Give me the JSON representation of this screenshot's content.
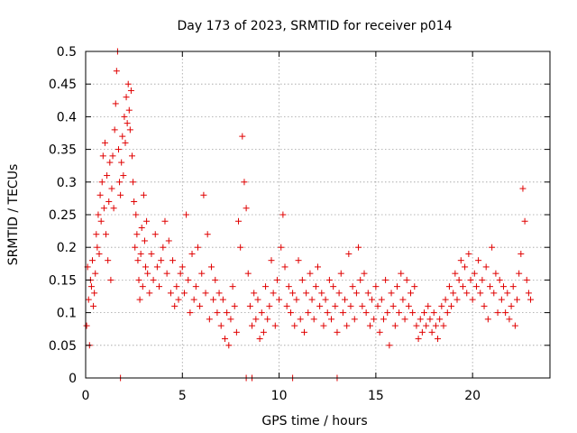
{
  "chart_data": {
    "type": "scatter",
    "title": "Day 173 of 2023, SRMTID for receiver p014",
    "xlabel": "GPS time / hours",
    "ylabel": "SRMTID / TECUs",
    "xlim": [
      0,
      24
    ],
    "ylim": [
      0,
      0.5
    ],
    "xticks": [
      0,
      5,
      10,
      15,
      20
    ],
    "xtick_labels": [
      "0",
      "5",
      "10",
      "15",
      "20"
    ],
    "yticks": [
      0,
      0.05,
      0.1,
      0.15,
      0.2,
      0.25,
      0.3,
      0.35,
      0.4,
      0.45,
      0.5
    ],
    "ytick_labels": [
      "0",
      "0.05",
      "0.1",
      "0.15",
      "0.2",
      "0.25",
      "0.3",
      "0.35",
      "0.4",
      "0.45",
      "0.5"
    ],
    "grid": true,
    "marker": "+",
    "marker_color": "#e00000",
    "series": [
      {
        "name": "SRMTID",
        "points": [
          [
            0.05,
            0.08
          ],
          [
            0.1,
            0.17
          ],
          [
            0.15,
            0.12
          ],
          [
            0.2,
            0.05
          ],
          [
            0.25,
            0.15
          ],
          [
            0.3,
            0.14
          ],
          [
            0.35,
            0.18
          ],
          [
            0.4,
            0.11
          ],
          [
            0.45,
            0.13
          ],
          [
            0.5,
            0.16
          ],
          [
            0.55,
            0.22
          ],
          [
            0.6,
            0.2
          ],
          [
            0.65,
            0.25
          ],
          [
            0.7,
            0.19
          ],
          [
            0.75,
            0.28
          ],
          [
            0.8,
            0.24
          ],
          [
            0.85,
            0.3
          ],
          [
            0.9,
            0.34
          ],
          [
            0.95,
            0.26
          ],
          [
            1.0,
            0.36
          ],
          [
            1.05,
            0.22
          ],
          [
            1.1,
            0.31
          ],
          [
            1.15,
            0.18
          ],
          [
            1.2,
            0.27
          ],
          [
            1.25,
            0.33
          ],
          [
            1.3,
            0.15
          ],
          [
            1.35,
            0.29
          ],
          [
            1.4,
            0.34
          ],
          [
            1.45,
            0.26
          ],
          [
            1.5,
            0.38
          ],
          [
            1.55,
            0.42
          ],
          [
            1.6,
            0.47
          ],
          [
            1.65,
            0.5
          ],
          [
            1.7,
            0.35
          ],
          [
            1.75,
            0.3
          ],
          [
            1.8,
            0.28
          ],
          [
            1.85,
            0.33
          ],
          [
            1.9,
            0.37
          ],
          [
            1.95,
            0.31
          ],
          [
            2.0,
            0.4
          ],
          [
            2.05,
            0.36
          ],
          [
            2.1,
            0.43
          ],
          [
            2.15,
            0.39
          ],
          [
            2.2,
            0.45
          ],
          [
            2.25,
            0.41
          ],
          [
            2.3,
            0.38
          ],
          [
            2.35,
            0.44
          ],
          [
            2.4,
            0.34
          ],
          [
            2.45,
            0.3
          ],
          [
            2.5,
            0.27
          ],
          [
            2.55,
            0.2
          ],
          [
            2.6,
            0.25
          ],
          [
            2.65,
            0.22
          ],
          [
            2.7,
            0.18
          ],
          [
            2.75,
            0.15
          ],
          [
            2.8,
            0.12
          ],
          [
            2.85,
            0.19
          ],
          [
            2.9,
            0.23
          ],
          [
            2.95,
            0.14
          ],
          [
            3.0,
            0.28
          ],
          [
            3.05,
            0.21
          ],
          [
            3.1,
            0.17
          ],
          [
            3.15,
            0.24
          ],
          [
            3.2,
            0.16
          ],
          [
            3.3,
            0.13
          ],
          [
            3.4,
            0.19
          ],
          [
            3.5,
            0.15
          ],
          [
            3.6,
            0.22
          ],
          [
            3.7,
            0.17
          ],
          [
            3.8,
            0.14
          ],
          [
            3.9,
            0.18
          ],
          [
            4.0,
            0.2
          ],
          [
            4.1,
            0.24
          ],
          [
            4.2,
            0.16
          ],
          [
            4.3,
            0.21
          ],
          [
            4.4,
            0.13
          ],
          [
            4.5,
            0.18
          ],
          [
            4.6,
            0.11
          ],
          [
            4.7,
            0.14
          ],
          [
            4.8,
            0.12
          ],
          [
            4.9,
            0.16
          ],
          [
            5.0,
            0.17
          ],
          [
            5.1,
            0.13
          ],
          [
            5.2,
            0.25
          ],
          [
            5.3,
            0.15
          ],
          [
            5.4,
            0.1
          ],
          [
            5.5,
            0.19
          ],
          [
            5.6,
            0.12
          ],
          [
            5.7,
            0.14
          ],
          [
            5.8,
            0.2
          ],
          [
            5.9,
            0.11
          ],
          [
            6.0,
            0.16
          ],
          [
            6.1,
            0.28
          ],
          [
            6.2,
            0.13
          ],
          [
            6.3,
            0.22
          ],
          [
            6.4,
            0.09
          ],
          [
            6.5,
            0.17
          ],
          [
            6.6,
            0.12
          ],
          [
            6.7,
            0.15
          ],
          [
            6.8,
            0.1
          ],
          [
            6.9,
            0.13
          ],
          [
            7.0,
            0.08
          ],
          [
            7.1,
            0.12
          ],
          [
            7.2,
            0.06
          ],
          [
            7.3,
            0.1
          ],
          [
            7.4,
            0.05
          ],
          [
            7.5,
            0.09
          ],
          [
            7.6,
            0.14
          ],
          [
            7.7,
            0.11
          ],
          [
            7.8,
            0.07
          ],
          [
            7.9,
            0.24
          ],
          [
            8.0,
            0.2
          ],
          [
            8.1,
            0.37
          ],
          [
            8.2,
            0.3
          ],
          [
            8.3,
            0.26
          ],
          [
            8.4,
            0.16
          ],
          [
            8.5,
            0.11
          ],
          [
            8.6,
            0.08
          ],
          [
            8.7,
            0.13
          ],
          [
            8.8,
            0.09
          ],
          [
            8.9,
            0.12
          ],
          [
            9.0,
            0.06
          ],
          [
            9.1,
            0.1
          ],
          [
            9.2,
            0.07
          ],
          [
            9.3,
            0.14
          ],
          [
            9.4,
            0.09
          ],
          [
            9.5,
            0.11
          ],
          [
            9.6,
            0.18
          ],
          [
            9.7,
            0.13
          ],
          [
            9.8,
            0.08
          ],
          [
            9.9,
            0.15
          ],
          [
            10.0,
            0.12
          ],
          [
            10.1,
            0.2
          ],
          [
            10.2,
            0.25
          ],
          [
            10.3,
            0.17
          ],
          [
            10.4,
            0.11
          ],
          [
            10.5,
            0.14
          ],
          [
            10.6,
            0.1
          ],
          [
            10.7,
            0.13
          ],
          [
            10.8,
            0.08
          ],
          [
            10.9,
            0.12
          ],
          [
            11.0,
            0.18
          ],
          [
            11.1,
            0.09
          ],
          [
            11.2,
            0.15
          ],
          [
            11.3,
            0.07
          ],
          [
            11.4,
            0.13
          ],
          [
            11.5,
            0.1
          ],
          [
            11.6,
            0.16
          ],
          [
            11.7,
            0.12
          ],
          [
            11.8,
            0.09
          ],
          [
            11.9,
            0.14
          ],
          [
            12.0,
            0.17
          ],
          [
            12.1,
            0.11
          ],
          [
            12.2,
            0.13
          ],
          [
            12.3,
            0.08
          ],
          [
            12.4,
            0.12
          ],
          [
            12.5,
            0.1
          ],
          [
            12.6,
            0.15
          ],
          [
            12.7,
            0.09
          ],
          [
            12.8,
            0.14
          ],
          [
            12.9,
            0.11
          ],
          [
            13.0,
            0.07
          ],
          [
            13.1,
            0.13
          ],
          [
            13.2,
            0.16
          ],
          [
            13.3,
            0.1
          ],
          [
            13.4,
            0.12
          ],
          [
            13.5,
            0.08
          ],
          [
            13.6,
            0.19
          ],
          [
            13.7,
            0.11
          ],
          [
            13.8,
            0.14
          ],
          [
            13.9,
            0.09
          ],
          [
            14.0,
            0.13
          ],
          [
            14.1,
            0.2
          ],
          [
            14.2,
            0.15
          ],
          [
            14.3,
            0.11
          ],
          [
            14.4,
            0.16
          ],
          [
            14.5,
            0.1
          ],
          [
            14.6,
            0.13
          ],
          [
            14.7,
            0.08
          ],
          [
            14.8,
            0.12
          ],
          [
            14.9,
            0.09
          ],
          [
            15.0,
            0.14
          ],
          [
            15.1,
            0.11
          ],
          [
            15.2,
            0.07
          ],
          [
            15.3,
            0.12
          ],
          [
            15.4,
            0.09
          ],
          [
            15.5,
            0.15
          ],
          [
            15.6,
            0.1
          ],
          [
            15.7,
            0.05
          ],
          [
            15.8,
            0.13
          ],
          [
            15.9,
            0.11
          ],
          [
            16.0,
            0.08
          ],
          [
            16.1,
            0.14
          ],
          [
            16.2,
            0.1
          ],
          [
            16.3,
            0.16
          ],
          [
            16.4,
            0.12
          ],
          [
            16.5,
            0.09
          ],
          [
            16.6,
            0.15
          ],
          [
            16.7,
            0.11
          ],
          [
            16.8,
            0.13
          ],
          [
            16.9,
            0.1
          ],
          [
            17.0,
            0.14
          ],
          [
            17.1,
            0.08
          ],
          [
            17.2,
            0.06
          ],
          [
            17.3,
            0.09
          ],
          [
            17.4,
            0.07
          ],
          [
            17.5,
            0.1
          ],
          [
            17.6,
            0.08
          ],
          [
            17.7,
            0.11
          ],
          [
            17.8,
            0.09
          ],
          [
            17.9,
            0.07
          ],
          [
            18.0,
            0.1
          ],
          [
            18.1,
            0.08
          ],
          [
            18.2,
            0.06
          ],
          [
            18.3,
            0.09
          ],
          [
            18.4,
            0.11
          ],
          [
            18.5,
            0.08
          ],
          [
            18.6,
            0.12
          ],
          [
            18.7,
            0.1
          ],
          [
            18.8,
            0.14
          ],
          [
            18.9,
            0.11
          ],
          [
            19.0,
            0.13
          ],
          [
            19.1,
            0.16
          ],
          [
            19.2,
            0.12
          ],
          [
            19.3,
            0.15
          ],
          [
            19.4,
            0.18
          ],
          [
            19.5,
            0.14
          ],
          [
            19.6,
            0.17
          ],
          [
            19.7,
            0.13
          ],
          [
            19.8,
            0.19
          ],
          [
            19.9,
            0.15
          ],
          [
            20.0,
            0.12
          ],
          [
            20.1,
            0.16
          ],
          [
            20.2,
            0.14
          ],
          [
            20.3,
            0.18
          ],
          [
            20.4,
            0.13
          ],
          [
            20.5,
            0.15
          ],
          [
            20.6,
            0.11
          ],
          [
            20.7,
            0.17
          ],
          [
            20.8,
            0.09
          ],
          [
            20.9,
            0.14
          ],
          [
            21.0,
            0.2
          ],
          [
            21.1,
            0.13
          ],
          [
            21.2,
            0.16
          ],
          [
            21.3,
            0.1
          ],
          [
            21.4,
            0.15
          ],
          [
            21.5,
            0.12
          ],
          [
            21.6,
            0.14
          ],
          [
            21.7,
            0.1
          ],
          [
            21.8,
            0.13
          ],
          [
            21.9,
            0.09
          ],
          [
            22.0,
            0.11
          ],
          [
            22.1,
            0.14
          ],
          [
            22.2,
            0.08
          ],
          [
            22.3,
            0.12
          ],
          [
            22.4,
            0.16
          ],
          [
            22.5,
            0.19
          ],
          [
            22.6,
            0.29
          ],
          [
            22.7,
            0.24
          ],
          [
            22.8,
            0.15
          ],
          [
            22.9,
            0.13
          ],
          [
            23.0,
            0.12
          ]
        ]
      }
    ],
    "zero_markers_x": [
      1.8,
      8.3,
      8.6,
      10.7,
      13.0
    ]
  }
}
